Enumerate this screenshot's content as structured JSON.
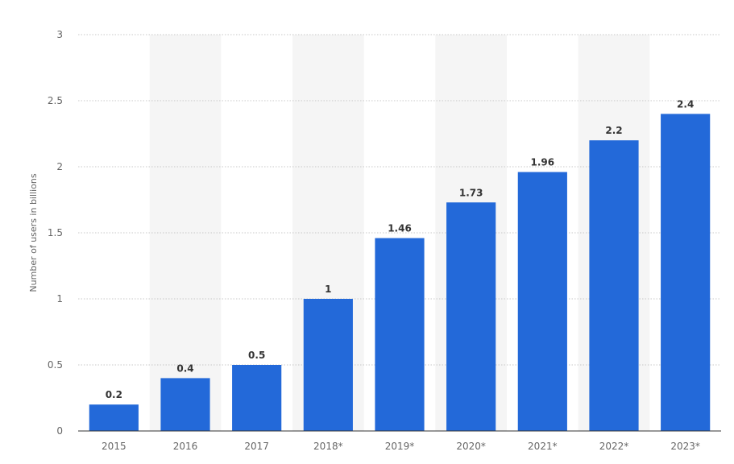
{
  "chart_data": {
    "type": "bar",
    "categories": [
      "2015",
      "2016",
      "2017",
      "2018*",
      "2019*",
      "2020*",
      "2021*",
      "2022*",
      "2023*"
    ],
    "values": [
      0.2,
      0.4,
      0.5,
      1,
      1.46,
      1.73,
      1.96,
      2.2,
      2.4
    ],
    "value_labels": [
      "0.2",
      "0.4",
      "0.5",
      "1",
      "1.46",
      "1.73",
      "1.96",
      "2.2",
      "2.4"
    ],
    "title": "",
    "xlabel": "",
    "ylabel": "Number of users in billions",
    "ylim": [
      0,
      3
    ],
    "yticks": [
      0,
      0.5,
      1,
      1.5,
      2,
      2.5,
      3
    ],
    "ytick_labels": [
      "0",
      "0.5",
      "1",
      "1.5",
      "2",
      "2.5",
      "3"
    ],
    "grid": true,
    "alternating_bands": true,
    "legend": "none",
    "bar_color": "#2369d9",
    "band_color": "#f5f5f5",
    "grid_color": "#c8c8c8"
  }
}
